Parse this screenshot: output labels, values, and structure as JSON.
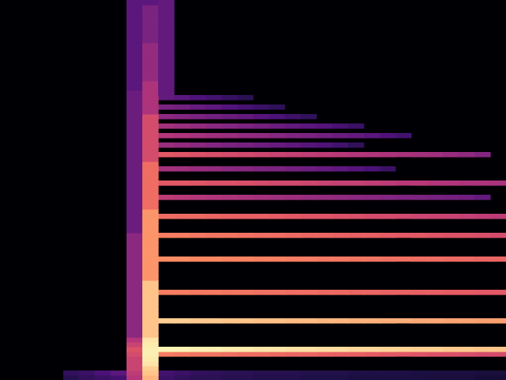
{
  "chart_data": {
    "type": "heatmap",
    "xlim": [
      0,
      32
    ],
    "ylim": [
      0,
      80
    ],
    "tick_labels": false,
    "grid": false,
    "color_range": [
      0,
      100
    ],
    "row_runs": [
      {
        "y": 0,
        "x0": 4,
        "values": [
          15,
          18,
          20,
          22
        ]
      },
      {
        "y": 1,
        "x0": 4,
        "values": [
          18,
          20,
          24,
          28
        ]
      },
      {
        "y": 0,
        "x0": 10,
        "values": [
          20,
          18,
          16,
          16,
          15,
          15,
          14,
          14,
          14,
          13,
          13,
          13,
          12,
          12,
          12,
          12,
          12,
          11,
          11,
          11,
          10,
          10
        ]
      },
      {
        "y": 1,
        "x0": 10,
        "values": [
          22,
          20,
          18,
          17,
          16,
          16,
          15,
          15,
          15,
          14,
          14,
          14,
          13,
          13,
          13,
          13,
          12,
          12,
          12,
          12,
          11,
          11
        ]
      },
      {
        "y": 5,
        "x0": 10,
        "values": [
          72,
          71,
          70,
          70,
          69,
          68,
          68,
          67,
          66,
          66,
          65,
          64,
          64,
          63,
          62,
          62,
          61,
          60,
          60,
          59,
          58,
          58
        ]
      },
      {
        "y": 6,
        "x0": 10,
        "values": [
          98,
          98,
          97,
          97,
          96,
          96,
          95,
          95,
          94,
          94,
          93,
          93,
          92,
          92,
          91,
          91,
          90,
          90,
          89,
          89,
          88,
          88
        ]
      },
      {
        "y": 12,
        "x0": 10,
        "values": [
          90,
          90,
          89,
          89,
          88,
          88,
          87,
          87,
          86,
          86,
          85,
          85,
          84,
          84,
          83,
          83,
          82,
          82,
          81,
          81,
          80,
          80
        ]
      },
      {
        "y": 18,
        "x0": 10,
        "values": [
          72,
          72,
          71,
          71,
          70,
          70,
          69,
          69,
          68,
          68,
          67,
          67,
          66,
          66,
          65,
          65,
          64,
          64,
          63,
          63,
          62,
          62
        ]
      },
      {
        "y": 25,
        "x0": 10,
        "values": [
          76,
          76,
          75,
          75,
          74,
          74,
          73,
          73,
          72,
          72,
          71,
          71,
          70,
          70,
          69,
          69,
          68,
          68,
          67,
          67,
          66,
          66
        ]
      },
      {
        "y": 30,
        "x0": 10,
        "values": [
          72,
          72,
          71,
          70,
          70,
          69,
          68,
          68,
          67,
          66,
          66,
          65,
          64,
          64,
          63,
          62,
          62,
          61,
          60,
          60,
          59,
          58
        ]
      },
      {
        "y": 34,
        "x0": 10,
        "values": [
          68,
          67,
          67,
          66,
          65,
          64,
          64,
          63,
          62,
          61,
          61,
          60,
          59,
          58,
          58,
          57,
          56,
          55,
          55,
          54,
          53,
          52
        ]
      },
      {
        "y": 38,
        "x0": 10,
        "values": [
          52,
          51,
          50,
          49,
          48,
          47,
          46,
          45,
          44,
          43,
          42,
          41,
          40,
          39,
          38,
          37,
          36,
          35,
          34,
          33,
          30
        ]
      },
      {
        "y": 41,
        "x0": 10,
        "values": [
          62,
          62,
          61,
          60,
          60,
          59,
          58,
          57,
          57,
          56,
          55,
          54,
          54,
          53,
          52,
          51,
          51,
          50,
          49,
          48,
          48,
          47
        ]
      },
      {
        "y": 44,
        "x0": 10,
        "values": [
          46,
          45,
          43,
          42,
          40,
          39,
          37,
          36,
          34,
          33,
          31,
          29,
          27,
          24,
          20
        ]
      },
      {
        "y": 47,
        "x0": 10,
        "values": [
          62,
          61,
          60,
          59,
          58,
          57,
          56,
          55,
          54,
          53,
          52,
          51,
          50,
          49,
          48,
          47,
          46,
          45,
          43,
          41,
          38
        ]
      },
      {
        "y": 49,
        "x0": 10,
        "values": [
          44,
          42,
          40,
          38,
          36,
          35,
          33,
          31,
          29,
          27,
          25,
          22,
          18
        ]
      },
      {
        "y": 51,
        "x0": 10,
        "values": [
          50,
          48,
          47,
          45,
          44,
          42,
          41,
          39,
          37,
          36,
          34,
          32,
          30,
          28,
          25,
          22
        ]
      },
      {
        "y": 53,
        "x0": 10,
        "values": [
          46,
          44,
          42,
          40,
          38,
          36,
          34,
          32,
          30,
          28,
          26,
          23,
          20
        ]
      },
      {
        "y": 55,
        "x0": 10,
        "values": [
          40,
          38,
          36,
          34,
          32,
          30,
          27,
          24,
          21,
          18
        ]
      },
      {
        "y": 57,
        "x0": 10,
        "values": [
          36,
          34,
          31,
          29,
          26,
          23,
          20,
          17
        ]
      },
      {
        "y": 59,
        "x0": 10,
        "values": [
          30,
          28,
          25,
          22,
          19,
          16
        ]
      }
    ],
    "column_runs": [
      {
        "x": 8,
        "y0": 0,
        "values": [
          50,
          52,
          55,
          55,
          55,
          58,
          60,
          55,
          50,
          40,
          40,
          40,
          40,
          40,
          40,
          40,
          40,
          40,
          40,
          40,
          40,
          40,
          40,
          40,
          40,
          40,
          40,
          40,
          40,
          40,
          40,
          32,
          32,
          32,
          32,
          32,
          32,
          32,
          32,
          32,
          32,
          32,
          32,
          32,
          32,
          32,
          32,
          32,
          32,
          32,
          32,
          32,
          32,
          32,
          32,
          32,
          32,
          32,
          32,
          32,
          32,
          28,
          28,
          28,
          28,
          28,
          28,
          28,
          28,
          28,
          28,
          28,
          28,
          28,
          28,
          28,
          28,
          28,
          28,
          28
        ]
      },
      {
        "x": 9,
        "y0": 0,
        "values": [
          85,
          88,
          90,
          95,
          96,
          97,
          97,
          96,
          95,
          88,
          88,
          88,
          88,
          88,
          88,
          88,
          88,
          88,
          88,
          88,
          88,
          78,
          78,
          78,
          78,
          78,
          78,
          78,
          78,
          78,
          78,
          78,
          78,
          78,
          78,
          78,
          68,
          68,
          68,
          68,
          68,
          68,
          68,
          68,
          68,
          68,
          58,
          58,
          58,
          58,
          58,
          58,
          58,
          58,
          58,
          58,
          48,
          48,
          48,
          48,
          48,
          48,
          48,
          42,
          42,
          42,
          42,
          42,
          42,
          42,
          42,
          36,
          36,
          36,
          36,
          36,
          36,
          36,
          36,
          28
        ]
      },
      {
        "x": 10,
        "y0": 60,
        "values": [
          30,
          30,
          30,
          30,
          30,
          30,
          30,
          30,
          30,
          30,
          30,
          30,
          30,
          30,
          30,
          30,
          30,
          30,
          30,
          30
        ]
      }
    ]
  }
}
